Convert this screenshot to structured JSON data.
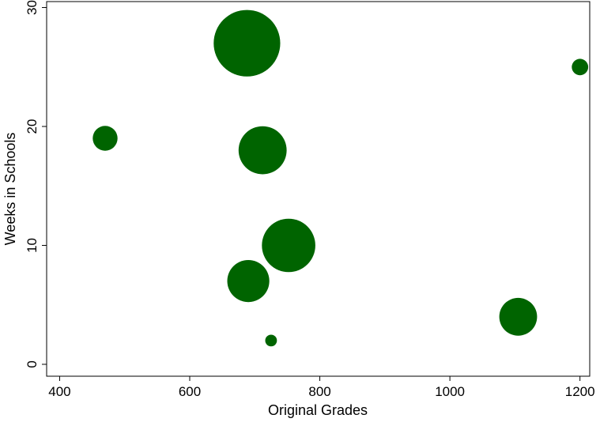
{
  "chart_data": {
    "type": "scatter",
    "xlabel": "Original Grades",
    "ylabel": "Weeks in Schools",
    "xlim": [
      380,
      1215
    ],
    "ylim": [
      -1,
      30.5
    ],
    "x_ticks": [
      400,
      600,
      800,
      1000,
      1200
    ],
    "y_ticks": [
      0,
      10,
      20,
      30
    ],
    "grid": false,
    "marker_color": "#006400",
    "points": [
      {
        "x": 688,
        "y": 27,
        "size": 6.5
      },
      {
        "x": 1200,
        "y": 25,
        "size": 0.4
      },
      {
        "x": 470,
        "y": 19,
        "size": 0.9
      },
      {
        "x": 712,
        "y": 18,
        "size": 3.4
      },
      {
        "x": 752,
        "y": 10,
        "size": 4.2
      },
      {
        "x": 690,
        "y": 7,
        "size": 2.6
      },
      {
        "x": 1105,
        "y": 4,
        "size": 2.1
      },
      {
        "x": 725,
        "y": 2,
        "size": 0.2
      }
    ]
  }
}
